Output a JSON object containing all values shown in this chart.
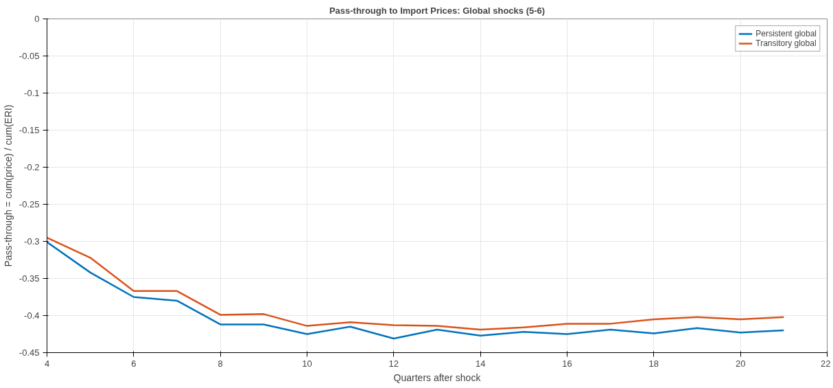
{
  "chart_data": {
    "type": "line",
    "title": "Pass-through to Import Prices: Global shocks (5-6)",
    "xlabel": "Quarters after shock",
    "ylabel": "Pass-through = cum(price) / cum(ERI)",
    "x": [
      4,
      5,
      6,
      7,
      8,
      9,
      10,
      11,
      12,
      13,
      14,
      15,
      16,
      17,
      18,
      19,
      20,
      21
    ],
    "series": [
      {
        "name": "Persistent global",
        "color": "#0072bd",
        "values": [
          -0.301,
          -0.342,
          -0.375,
          -0.38,
          -0.412,
          -0.412,
          -0.425,
          -0.415,
          -0.431,
          -0.419,
          -0.427,
          -0.422,
          -0.425,
          -0.419,
          -0.424,
          -0.417,
          -0.423,
          -0.42
        ]
      },
      {
        "name": "Transitory global",
        "color": "#d95319",
        "values": [
          -0.295,
          -0.322,
          -0.367,
          -0.367,
          -0.399,
          -0.398,
          -0.414,
          -0.409,
          -0.413,
          -0.414,
          -0.419,
          -0.416,
          -0.411,
          -0.411,
          -0.405,
          -0.402,
          -0.405,
          -0.402
        ]
      }
    ],
    "xlim": [
      4,
      22
    ],
    "ylim": [
      -0.45,
      0
    ],
    "xticks": [
      4,
      6,
      8,
      10,
      12,
      14,
      16,
      18,
      20,
      22
    ],
    "yticks": [
      -0.45,
      -0.4,
      -0.35,
      -0.3,
      -0.25,
      -0.2,
      -0.15,
      -0.1,
      -0.05,
      0
    ],
    "grid": true,
    "legend": "top right",
    "line_style": "solid",
    "marker": "none"
  }
}
